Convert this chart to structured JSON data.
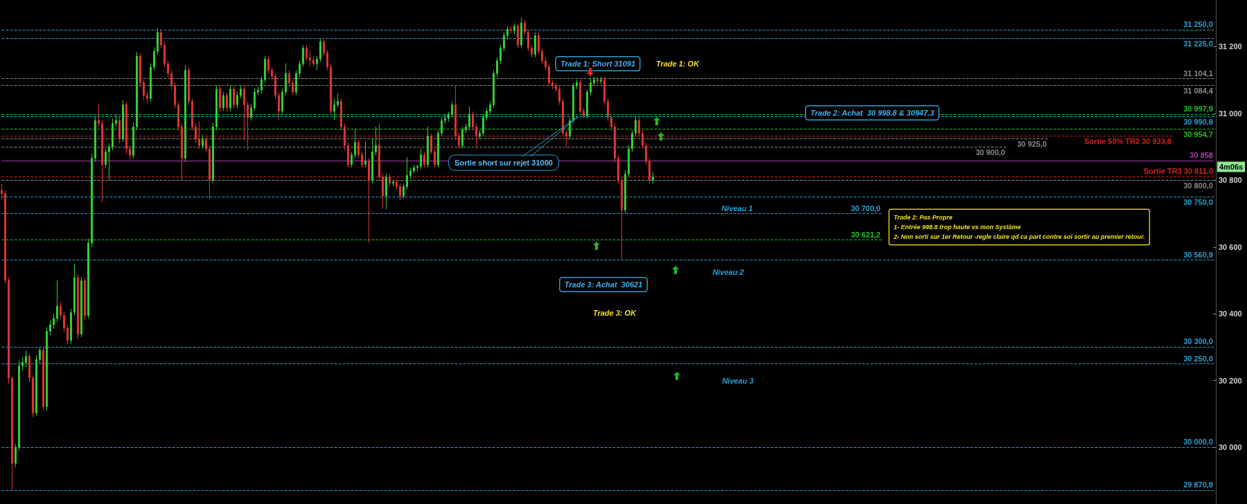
{
  "chart_data": {
    "type": "candlestick",
    "tick_labels": "y",
    "categories": [
      null,
      null,
      null,
      null,
      null,
      null,
      null,
      null,
      null,
      null,
      null,
      null,
      null,
      null,
      null,
      null,
      null,
      null,
      null,
      null,
      null,
      null,
      null,
      null,
      null,
      null,
      null,
      null,
      null,
      null,
      null,
      null,
      null,
      null,
      null,
      null,
      null,
      null,
      null,
      null,
      null,
      null,
      null,
      null,
      null,
      null,
      null,
      null,
      null,
      null,
      null,
      null,
      null,
      null,
      null,
      null,
      null,
      null,
      null,
      null,
      null,
      null,
      null,
      null,
      null,
      null,
      null,
      null,
      null,
      null,
      null,
      null,
      null,
      null,
      null,
      null,
      null,
      null,
      null,
      null,
      null,
      null,
      null,
      null,
      null,
      null,
      null,
      null,
      null,
      null,
      null,
      null,
      null,
      null,
      null,
      null,
      null,
      null,
      null,
      null,
      null,
      null,
      null,
      null,
      null,
      null,
      null,
      null,
      null,
      null,
      null,
      null,
      null,
      null,
      null,
      null,
      null,
      null,
      null,
      null,
      null,
      null,
      null,
      null,
      null,
      null,
      null,
      null,
      null,
      null,
      null,
      null,
      null,
      null,
      null,
      null,
      null,
      null,
      null,
      null,
      null,
      null,
      null,
      null,
      null,
      null,
      null,
      null,
      null,
      null,
      null,
      null,
      null,
      null,
      null,
      null,
      null,
      null,
      null,
      null,
      null,
      null,
      null,
      null,
      null,
      null,
      null,
      null,
      null,
      null,
      null,
      null,
      null,
      null,
      null,
      null,
      null,
      null,
      null,
      null,
      null,
      null,
      null,
      null,
      null,
      null,
      null,
      null,
      null,
      null,
      null,
      null,
      null,
      null,
      null,
      null,
      null,
      null,
      null,
      null,
      null,
      null,
      null,
      null,
      null,
      null,
      null,
      null,
      null,
      null,
      null,
      null,
      null,
      null,
      null,
      null,
      null,
      null,
      null,
      null,
      null,
      null,
      null,
      null,
      null,
      null,
      null,
      null,
      null,
      null,
      null,
      null,
      null,
      null,
      null,
      null,
      null,
      null,
      null,
      null,
      null,
      null,
      null,
      null,
      null,
      null,
      null,
      null,
      null,
      null,
      null,
      null,
      null,
      null,
      null,
      null,
      null,
      null,
      null,
      null,
      null,
      null,
      null,
      null,
      null,
      null,
      null,
      null,
      null,
      null,
      null,
      null,
      null,
      null,
      null,
      null,
      null,
      null,
      null,
      null,
      null,
      null,
      null,
      null,
      null,
      null,
      null,
      null,
      null,
      null,
      null,
      null,
      null,
      null,
      null,
      null,
      null,
      null,
      null,
      null,
      null,
      null,
      null,
      null,
      null,
      null,
      null,
      null,
      null,
      null,
      null,
      null,
      null,
      null,
      null,
      null,
      null,
      null,
      null,
      null,
      null,
      null,
      null,
      null,
      null,
      null,
      null,
      null,
      null,
      null,
      null,
      null,
      null,
      null,
      null,
      null,
      null,
      null,
      null,
      null,
      null,
      null,
      null,
      null,
      null,
      null,
      null,
      null,
      null,
      null,
      null
    ],
    "ohlc": [
      [
        30770,
        30790,
        30740,
        30760
      ],
      [
        30760,
        30770,
        30490,
        30500
      ],
      [
        30500,
        30510,
        30190,
        30207
      ],
      [
        30207,
        30215,
        29871,
        29952
      ],
      [
        29952,
        30010,
        29940,
        30000
      ],
      [
        30000,
        30260,
        29990,
        30244
      ],
      [
        30244,
        30270,
        30230,
        30254
      ],
      [
        30254,
        30290,
        30240,
        30273
      ],
      [
        30273,
        30280,
        30195,
        30207
      ],
      [
        30207,
        30215,
        30090,
        30103
      ],
      [
        30103,
        30275,
        30095,
        30263
      ],
      [
        30263,
        30300,
        30250,
        30291
      ],
      [
        30291,
        30300,
        30110,
        30122
      ],
      [
        30122,
        30360,
        30110,
        30348
      ],
      [
        30348,
        30380,
        30335,
        30367
      ],
      [
        30367,
        30400,
        30355,
        30386
      ],
      [
        30386,
        30500,
        30375,
        30423
      ],
      [
        30423,
        30435,
        30385,
        30395
      ],
      [
        30395,
        30405,
        30345,
        30357
      ],
      [
        30357,
        30365,
        30308,
        30320
      ],
      [
        30320,
        30415,
        30310,
        30404
      ],
      [
        30404,
        30550,
        30395,
        30508
      ],
      [
        30508,
        30518,
        30325,
        30339
      ],
      [
        30339,
        30510,
        30330,
        30499
      ],
      [
        30499,
        30508,
        30380,
        30395
      ],
      [
        30395,
        30625,
        30385,
        30612
      ],
      [
        30612,
        30880,
        30600,
        30866
      ],
      [
        30866,
        30990,
        30855,
        30979
      ],
      [
        30979,
        31030,
        30960,
        30970
      ],
      [
        30970,
        30980,
        30735,
        30847
      ],
      [
        30847,
        30895,
        30835,
        30885
      ],
      [
        30885,
        30910,
        30800,
        30899
      ],
      [
        30899,
        30985,
        30890,
        30970
      ],
      [
        30970,
        30995,
        30960,
        30979
      ],
      [
        30979,
        30990,
        30910,
        30923
      ],
      [
        30923,
        31040,
        30915,
        31026
      ],
      [
        31026,
        31035,
        30880,
        30894
      ],
      [
        30894,
        30905,
        30862,
        30875
      ],
      [
        30875,
        30972,
        30865,
        30960
      ],
      [
        30960,
        31185,
        30950,
        31172
      ],
      [
        31172,
        31182,
        31080,
        31092
      ],
      [
        31092,
        31100,
        31040,
        31054
      ],
      [
        31054,
        31065,
        31030,
        31045
      ],
      [
        31045,
        31150,
        31035,
        31139
      ],
      [
        31139,
        31198,
        31130,
        31186
      ],
      [
        31186,
        31255,
        31176,
        31243
      ],
      [
        31243,
        31252,
        31195,
        31205
      ],
      [
        31205,
        31215,
        31138,
        31149
      ],
      [
        31149,
        31158,
        31108,
        31120
      ],
      [
        31120,
        31130,
        31072,
        31083
      ],
      [
        31083,
        31092,
        31015,
        31026
      ],
      [
        31026,
        31035,
        30948,
        30960
      ],
      [
        30960,
        30970,
        30800,
        30866
      ],
      [
        30866,
        31145,
        30855,
        31130
      ],
      [
        31130,
        31140,
        31025,
        31036
      ],
      [
        31036,
        31045,
        30950,
        30960
      ],
      [
        30960,
        30970,
        30912,
        30923
      ],
      [
        30923,
        30975,
        30893,
        30904
      ],
      [
        30904,
        30935,
        30895,
        30923
      ],
      [
        30923,
        30932,
        30884,
        30894
      ],
      [
        30894,
        30905,
        30745,
        30800
      ],
      [
        30800,
        30972,
        30790,
        30960
      ],
      [
        30960,
        31085,
        30950,
        31073
      ],
      [
        31073,
        31082,
        31005,
        31017
      ],
      [
        31017,
        31065,
        31008,
        31054
      ],
      [
        31054,
        31062,
        31005,
        31017
      ],
      [
        31017,
        31085,
        31008,
        31073
      ],
      [
        31073,
        31082,
        31015,
        31026
      ],
      [
        31026,
        31065,
        31015,
        31054
      ],
      [
        31054,
        31085,
        31045,
        31073
      ],
      [
        31073,
        31082,
        30920,
        31026
      ],
      [
        31026,
        31035,
        30890,
        30988
      ],
      [
        30988,
        31030,
        30978,
        31017
      ],
      [
        31017,
        31075,
        31008,
        31064
      ],
      [
        31064,
        31080,
        31055,
        31070
      ],
      [
        31070,
        31110,
        31060,
        31101
      ],
      [
        31101,
        31172,
        31092,
        31163
      ],
      [
        31163,
        31170,
        31120,
        31130
      ],
      [
        31130,
        31138,
        31100,
        31111
      ],
      [
        31111,
        31120,
        31043,
        31054
      ],
      [
        31054,
        31062,
        30980,
        31007
      ],
      [
        31007,
        31075,
        30998,
        31064
      ],
      [
        31064,
        31150,
        31055,
        31120
      ],
      [
        31120,
        31130,
        31082,
        31092
      ],
      [
        31092,
        31100,
        31055,
        31064
      ],
      [
        31064,
        31130,
        31055,
        31120
      ],
      [
        31120,
        31158,
        31110,
        31149
      ],
      [
        31149,
        31205,
        31140,
        31196
      ],
      [
        31196,
        31205,
        31158,
        31167
      ],
      [
        31167,
        31190,
        31140,
        31160
      ],
      [
        31160,
        31170,
        31140,
        31149
      ],
      [
        31149,
        31172,
        31130,
        31163
      ],
      [
        31163,
        31225,
        31155,
        31215
      ],
      [
        31215,
        31222,
        31172,
        31182
      ],
      [
        31182,
        31190,
        31130,
        31139
      ],
      [
        31139,
        31148,
        30998,
        31007
      ],
      [
        31007,
        31045,
        30980,
        31026
      ],
      [
        31026,
        31060,
        31018,
        31036
      ],
      [
        31036,
        31045,
        30950,
        30960
      ],
      [
        30960,
        30970,
        30890,
        30904
      ],
      [
        30904,
        30912,
        30838,
        30847
      ],
      [
        30847,
        30885,
        30838,
        30876
      ],
      [
        30876,
        30955,
        30866,
        30913
      ],
      [
        30913,
        30922,
        30866,
        30876
      ],
      [
        30876,
        30885,
        30838,
        30847
      ],
      [
        30847,
        30915,
        30838,
        30857
      ],
      [
        30857,
        30866,
        30612,
        30800
      ],
      [
        30800,
        30925,
        30790,
        30885
      ],
      [
        30885,
        30960,
        30875,
        30904
      ],
      [
        30904,
        30970,
        30800,
        30810
      ],
      [
        30810,
        30820,
        30715,
        30753
      ],
      [
        30753,
        30820,
        30712,
        30810
      ],
      [
        30810,
        30818,
        30782,
        30791
      ],
      [
        30791,
        30800,
        30782,
        30795
      ],
      [
        30795,
        30803,
        30772,
        30781
      ],
      [
        30781,
        30790,
        30740,
        30753
      ],
      [
        30753,
        30790,
        30744,
        30781
      ],
      [
        30781,
        30870,
        30772,
        30814
      ],
      [
        30814,
        30838,
        30805,
        30828
      ],
      [
        30828,
        30846,
        30820,
        30838
      ],
      [
        30838,
        30846,
        30826,
        30842
      ],
      [
        30842,
        30895,
        30833,
        30876
      ],
      [
        30876,
        30885,
        30838,
        30847
      ],
      [
        30847,
        30960,
        30838,
        30932
      ],
      [
        30932,
        30940,
        30878,
        30885
      ],
      [
        30885,
        30895,
        30838,
        30847
      ],
      [
        30847,
        30950,
        30838,
        30941
      ],
      [
        30941,
        30988,
        30932,
        30979
      ],
      [
        30979,
        30998,
        30968,
        30985
      ],
      [
        30985,
        31005,
        30975,
        30998
      ],
      [
        30998,
        31036,
        30988,
        31026
      ],
      [
        31026,
        31085,
        30920,
        30932
      ],
      [
        30932,
        30942,
        30895,
        30904
      ],
      [
        30904,
        30960,
        30895,
        30951
      ],
      [
        30951,
        30970,
        30940,
        30960
      ],
      [
        30960,
        31020,
        30950,
        30998
      ],
      [
        30998,
        31006,
        30950,
        30960
      ],
      [
        30960,
        30970,
        30895,
        30932
      ],
      [
        30932,
        30950,
        30922,
        30941
      ],
      [
        30941,
        30998,
        30932,
        30988
      ],
      [
        30988,
        31016,
        30978,
        31007
      ],
      [
        31007,
        31036,
        30998,
        31026
      ],
      [
        31026,
        31130,
        31017,
        31120
      ],
      [
        31120,
        31168,
        31110,
        31158
      ],
      [
        31158,
        31205,
        31148,
        31196
      ],
      [
        31196,
        31243,
        31186,
        31233
      ],
      [
        31233,
        31262,
        31222,
        31252
      ],
      [
        31252,
        31262,
        31240,
        31248
      ],
      [
        31248,
        31268,
        31238,
        31262
      ],
      [
        31262,
        31270,
        31195,
        31205
      ],
      [
        31205,
        31287,
        31195,
        31271
      ],
      [
        31271,
        31280,
        31233,
        31243
      ],
      [
        31243,
        31252,
        31186,
        31196
      ],
      [
        31196,
        31205,
        31168,
        31177
      ],
      [
        31177,
        31243,
        31168,
        31233
      ],
      [
        31233,
        31242,
        31177,
        31186
      ],
      [
        31186,
        31195,
        31148,
        31158
      ],
      [
        31158,
        31168,
        31130,
        31139
      ],
      [
        31139,
        31148,
        31083,
        31092
      ],
      [
        31092,
        31100,
        31073,
        31083
      ],
      [
        31083,
        31092,
        31064,
        31073
      ],
      [
        31073,
        31082,
        31026,
        31036
      ],
      [
        31036,
        31045,
        30932,
        30941
      ],
      [
        30941,
        30950,
        30900,
        30932
      ],
      [
        30932,
        30988,
        30922,
        30979
      ],
      [
        30979,
        31092,
        30970,
        31083
      ],
      [
        31083,
        31101,
        31073,
        31092
      ],
      [
        31092,
        31101,
        30998,
        31007
      ],
      [
        31007,
        31016,
        30985,
        30993
      ],
      [
        30993,
        31073,
        30985,
        31064
      ],
      [
        31064,
        31106,
        31055,
        31092
      ],
      [
        31092,
        31110,
        31083,
        31101
      ],
      [
        31101,
        31110,
        31088,
        31097
      ],
      [
        31097,
        31110,
        31088,
        31101
      ],
      [
        31101,
        31110,
        31026,
        31036
      ],
      [
        31036,
        31045,
        30978,
        30988
      ],
      [
        30988,
        30998,
        30950,
        30960
      ],
      [
        30960,
        30970,
        30855,
        30866
      ],
      [
        30866,
        30876,
        30790,
        30800
      ],
      [
        30800,
        30810,
        30561,
        30711
      ],
      [
        30711,
        30830,
        30700,
        30819
      ],
      [
        30819,
        30904,
        30810,
        30894
      ],
      [
        30894,
        30950,
        30885,
        30941
      ],
      [
        30941,
        30990,
        30930,
        30979
      ],
      [
        30979,
        30988,
        30930,
        30941
      ],
      [
        30941,
        30950,
        30895,
        30904
      ],
      [
        30904,
        30912,
        30848,
        30857
      ],
      [
        30857,
        30866,
        30790,
        30800
      ],
      [
        30800,
        30825,
        30790,
        30810
      ],
      null,
      null,
      null,
      null,
      null,
      null,
      null,
      null,
      null,
      null,
      null,
      null,
      null,
      null,
      null,
      null,
      null,
      null,
      null,
      null,
      null,
      null,
      null,
      null,
      null,
      null,
      null,
      null,
      null,
      null,
      null,
      null,
      null,
      null,
      null,
      null,
      null,
      null,
      null,
      null,
      null,
      null,
      null,
      null,
      null,
      null,
      null,
      null,
      null,
      null,
      null,
      null,
      null,
      null,
      null,
      null,
      null,
      null,
      null,
      null,
      null,
      null,
      null,
      null,
      null,
      null,
      null,
      null,
      null,
      null,
      null,
      null,
      null,
      null,
      null,
      null,
      null,
      null,
      null,
      null,
      null,
      null,
      null,
      null,
      null,
      null,
      null,
      null,
      null,
      null,
      null,
      null,
      null,
      null,
      null,
      null,
      null,
      null,
      null,
      null,
      null,
      null,
      null,
      null,
      null,
      null,
      null,
      null,
      null,
      null,
      null,
      null,
      null,
      null,
      null,
      null,
      null,
      null,
      null,
      null,
      null,
      null,
      null,
      null,
      null,
      null,
      null,
      null,
      null,
      null,
      null,
      null,
      null,
      null,
      null,
      null,
      null,
      null,
      null,
      null,
      null,
      null,
      null,
      null,
      null,
      null,
      null,
      null,
      null,
      null,
      null,
      null,
      null,
      null,
      null,
      null,
      null,
      null,
      null,
      null,
      null,
      null
    ],
    "colors": [
      "#dd3333",
      "#dd3333",
      "#dd3333",
      "#dd3333",
      "#33cc33",
      "#33cc33",
      "#33cc33",
      "#33cc33",
      "#dd3333",
      "#dd3333",
      "#33cc33",
      "#33cc33",
      "#dd3333",
      "#33cc33",
      "#33cc33",
      "#33cc33",
      "#33cc33",
      "#dd3333",
      "#dd3333",
      "#dd3333",
      "#33cc33",
      "#33cc33",
      "#dd3333",
      "#33cc33",
      "#dd3333",
      "#33cc33",
      "#33cc33",
      "#33cc33",
      "#dd3333",
      "#dd3333",
      "#33cc33",
      "#33cc33",
      "#33cc33",
      "#33cc33",
      "#dd3333",
      "#33cc33",
      "#dd3333",
      "#dd3333",
      "#33cc33",
      "#33cc33",
      "#dd3333",
      "#dd3333",
      "#dd3333",
      "#33cc33",
      "#33cc33",
      "#33cc33",
      "#dd3333",
      "#dd3333",
      "#dd3333",
      "#dd3333",
      "#dd3333",
      "#dd3333",
      "#dd3333",
      "#33cc33",
      "#dd3333",
      "#dd3333",
      "#dd3333",
      "#dd3333",
      "#33cc33",
      "#dd3333",
      "#dd3333",
      "#33cc33",
      "#33cc33",
      "#dd3333",
      "#33cc33",
      "#dd3333",
      "#33cc33",
      "#dd3333",
      "#33cc33",
      "#33cc33",
      "#dd3333",
      "#dd3333",
      "#33cc33",
      "#33cc33",
      "#33cc33",
      "#33cc33",
      "#33cc33",
      "#dd3333",
      "#dd3333",
      "#dd3333",
      "#dd3333",
      "#33cc33",
      "#33cc33",
      "#dd3333",
      "#dd3333",
      "#33cc33",
      "#33cc33",
      "#33cc33",
      "#dd3333",
      "#dd3333",
      "#dd3333",
      "#33cc33",
      "#33cc33",
      "#dd3333",
      "#dd3333",
      "#dd3333",
      "#33cc33",
      "#33cc33",
      "#dd3333",
      "#dd3333",
      "#dd3333",
      "#33cc33",
      "#33cc33",
      "#dd3333",
      "#dd3333",
      "#33cc33",
      "#dd3333",
      "#33cc33",
      "#33cc33",
      "#dd3333",
      "#dd3333",
      "#33cc33",
      "#dd3333",
      "#33cc33",
      "#dd3333",
      "#dd3333",
      "#33cc33",
      "#33cc33",
      "#33cc33",
      "#33cc33",
      "#33cc33",
      "#33cc33",
      "#dd3333",
      "#33cc33",
      "#dd3333",
      "#dd3333",
      "#33cc33",
      "#33cc33",
      "#33cc33",
      "#33cc33",
      "#33cc33",
      "#dd3333",
      "#dd3333",
      "#33cc33",
      "#33cc33",
      "#33cc33",
      "#dd3333",
      "#dd3333",
      "#33cc33",
      "#33cc33",
      "#33cc33",
      "#33cc33",
      "#33cc33",
      "#33cc33",
      "#33cc33",
      "#33cc33",
      "#33cc33",
      "#dd3333",
      "#33cc33",
      "#dd3333",
      "#33cc33",
      "#dd3333",
      "#dd3333",
      "#dd3333",
      "#33cc33",
      "#dd3333",
      "#dd3333",
      "#dd3333",
      "#dd3333",
      "#dd3333",
      "#dd3333",
      "#dd3333",
      "#dd3333",
      "#dd3333",
      "#33cc33",
      "#33cc33",
      "#33cc33",
      "#dd3333",
      "#dd3333",
      "#33cc33",
      "#33cc33",
      "#33cc33",
      "#dd3333",
      "#33cc33",
      "#dd3333",
      "#dd3333",
      "#dd3333",
      "#dd3333",
      "#dd3333",
      "#dd3333",
      "#33cc33",
      "#33cc33",
      "#33cc33",
      "#33cc33",
      "#dd3333",
      "#dd3333",
      "#dd3333",
      "#dd3333",
      "#33cc33",
      null,
      null,
      null,
      null,
      null,
      null,
      null,
      null,
      null,
      null,
      null,
      null,
      null,
      null,
      null,
      null,
      null,
      null,
      null,
      null,
      null,
      null,
      null,
      null,
      null,
      null,
      null,
      null,
      null,
      null,
      null,
      null,
      null,
      null,
      null,
      null,
      null,
      null,
      null,
      null,
      null,
      null,
      null,
      null,
      null,
      null,
      null,
      null,
      null,
      null,
      null,
      null,
      null,
      null,
      null,
      null,
      null,
      null,
      null,
      null,
      null,
      null,
      null,
      null,
      null,
      null,
      null,
      null,
      null,
      null,
      null,
      null,
      null,
      null,
      null,
      null,
      null,
      null,
      null,
      null,
      null,
      null,
      null,
      null,
      null,
      null,
      null,
      null,
      null,
      null,
      null,
      null,
      null,
      null,
      null,
      null,
      null,
      null,
      null,
      null,
      null,
      null,
      null,
      null,
      null,
      null,
      null,
      null,
      null,
      null,
      null,
      null,
      null,
      null,
      null,
      null,
      null,
      null,
      null,
      null,
      null,
      null,
      null,
      null,
      null,
      null,
      null,
      null,
      null,
      null,
      null,
      null,
      null,
      null,
      null,
      null,
      null,
      null,
      null,
      null,
      null,
      null,
      null,
      null,
      null,
      null,
      null,
      null,
      null,
      null,
      null,
      null,
      null,
      null,
      null,
      null,
      null,
      null,
      null,
      null,
      null,
      null
    ],
    "ylim": [
      29830,
      31340
    ],
    "yticks": [
      {
        "value": 30000,
        "label": "30 000"
      },
      {
        "value": 30200,
        "label": "30 200"
      },
      {
        "value": 30400,
        "label": "30 400"
      },
      {
        "value": 30600,
        "label": "30 600"
      },
      {
        "value": 30800,
        "label": "30 800"
      },
      {
        "value": 31000,
        "label": "31 000"
      },
      {
        "value": 31200,
        "label": "31 200"
      }
    ],
    "ref_lines": [
      {
        "axis": "y",
        "value": 31250.0,
        "label": "31 250,0",
        "color": "#2a9fd6",
        "line_style": "dashed"
      },
      {
        "axis": "y",
        "value": 31225.0,
        "label": "31 225,0",
        "color": "#2a9fd6",
        "line_style": "dashed"
      },
      {
        "axis": "y",
        "value": 31104.1,
        "label": "31 104,1",
        "color": "#8a8a8a",
        "line_style": "dashed"
      },
      {
        "axis": "y",
        "value": 31084.4,
        "label": "31 084,4",
        "color": "#8a8a8a",
        "line_style": "dashed"
      },
      {
        "axis": "y",
        "value": 30997.9,
        "label": "30 997,9",
        "color": "#22c322",
        "line_style": "dashed"
      },
      {
        "axis": "y",
        "value": 30990.8,
        "label": "30 990,8",
        "color": "#2a9fd6",
        "line_style": "dashed"
      },
      {
        "axis": "y",
        "value": 30954.7,
        "label": "30 954,7",
        "color": "#22c322",
        "line_style": "dashed"
      },
      {
        "axis": "y",
        "value": 30933.8,
        "label": "Sortie 50% TR2 30 933,8",
        "color": "#d42020",
        "line_style": "dashed"
      },
      {
        "axis": "y",
        "value": 30925.0,
        "label": "30 925,0",
        "color": "#8a8a8a",
        "line_style": "dashed"
      },
      {
        "axis": "y",
        "value": 30900.0,
        "label": "30 900,0",
        "color": "#8a8a8a",
        "line_style": "dashed"
      },
      {
        "axis": "y",
        "value": 30858,
        "label": "30 858",
        "color": "#b03cb0",
        "line_style": "solid"
      },
      {
        "axis": "y",
        "value": 30811.0,
        "label": "Sortie TR3 30 811,0",
        "color": "#d42020",
        "line_style": "dashed"
      },
      {
        "axis": "y",
        "value": 30800.0,
        "label": "30 800,0",
        "color": "#8a8a8a",
        "line_style": "dashed"
      },
      {
        "axis": "y",
        "value": 30750.0,
        "label": "30 750,0",
        "color": "#2a9fd6",
        "line_style": "dashed"
      },
      {
        "axis": "y",
        "value": 30700.0,
        "label": "30 700,0",
        "color": "#2a9fd6",
        "line_style": "dashed"
      },
      {
        "axis": "y",
        "value": 30621.2,
        "label": "30 621,2",
        "color": "#22c322",
        "line_style": "dashed"
      },
      {
        "axis": "y",
        "value": 30560.9,
        "label": "30 560,9",
        "color": "#2a9fd6",
        "line_style": "dashed"
      },
      {
        "axis": "y",
        "value": 30300.0,
        "label": "30 300,0",
        "color": "#2a9fd6",
        "line_style": "dashed"
      },
      {
        "axis": "y",
        "value": 30250.0,
        "label": "30 250,0",
        "color": "#2a9fd6",
        "line_style": "dashed"
      },
      {
        "axis": "y",
        "value": 30000.0,
        "label": "30 000,0",
        "color": "#2a9fd6",
        "line_style": "dashed"
      },
      {
        "axis": "y",
        "value": 29870.8,
        "label": "29 870,8",
        "color": "#2a9fd6",
        "line_style": "dashed"
      }
    ],
    "annotations": [
      "Trade 1: Short 31091",
      "Trade 1: OK",
      "Sortie short sur rejet 31000",
      "Trade 2: Achat  30 998.8 & 30947.3",
      "Niveau 1",
      "Niveau 2",
      "Niveau 3",
      "Trade 3: Achat  30621",
      "Trade 3: OK",
      "Trade 2: Pas Propre\n1- Entrée 998.8 trop haute vs mon Systàme\n2- Non sorti sur 1er Retour -regle claire qd ca part contre soi sortir au premier retour.",
      "4m06s"
    ]
  }
}
